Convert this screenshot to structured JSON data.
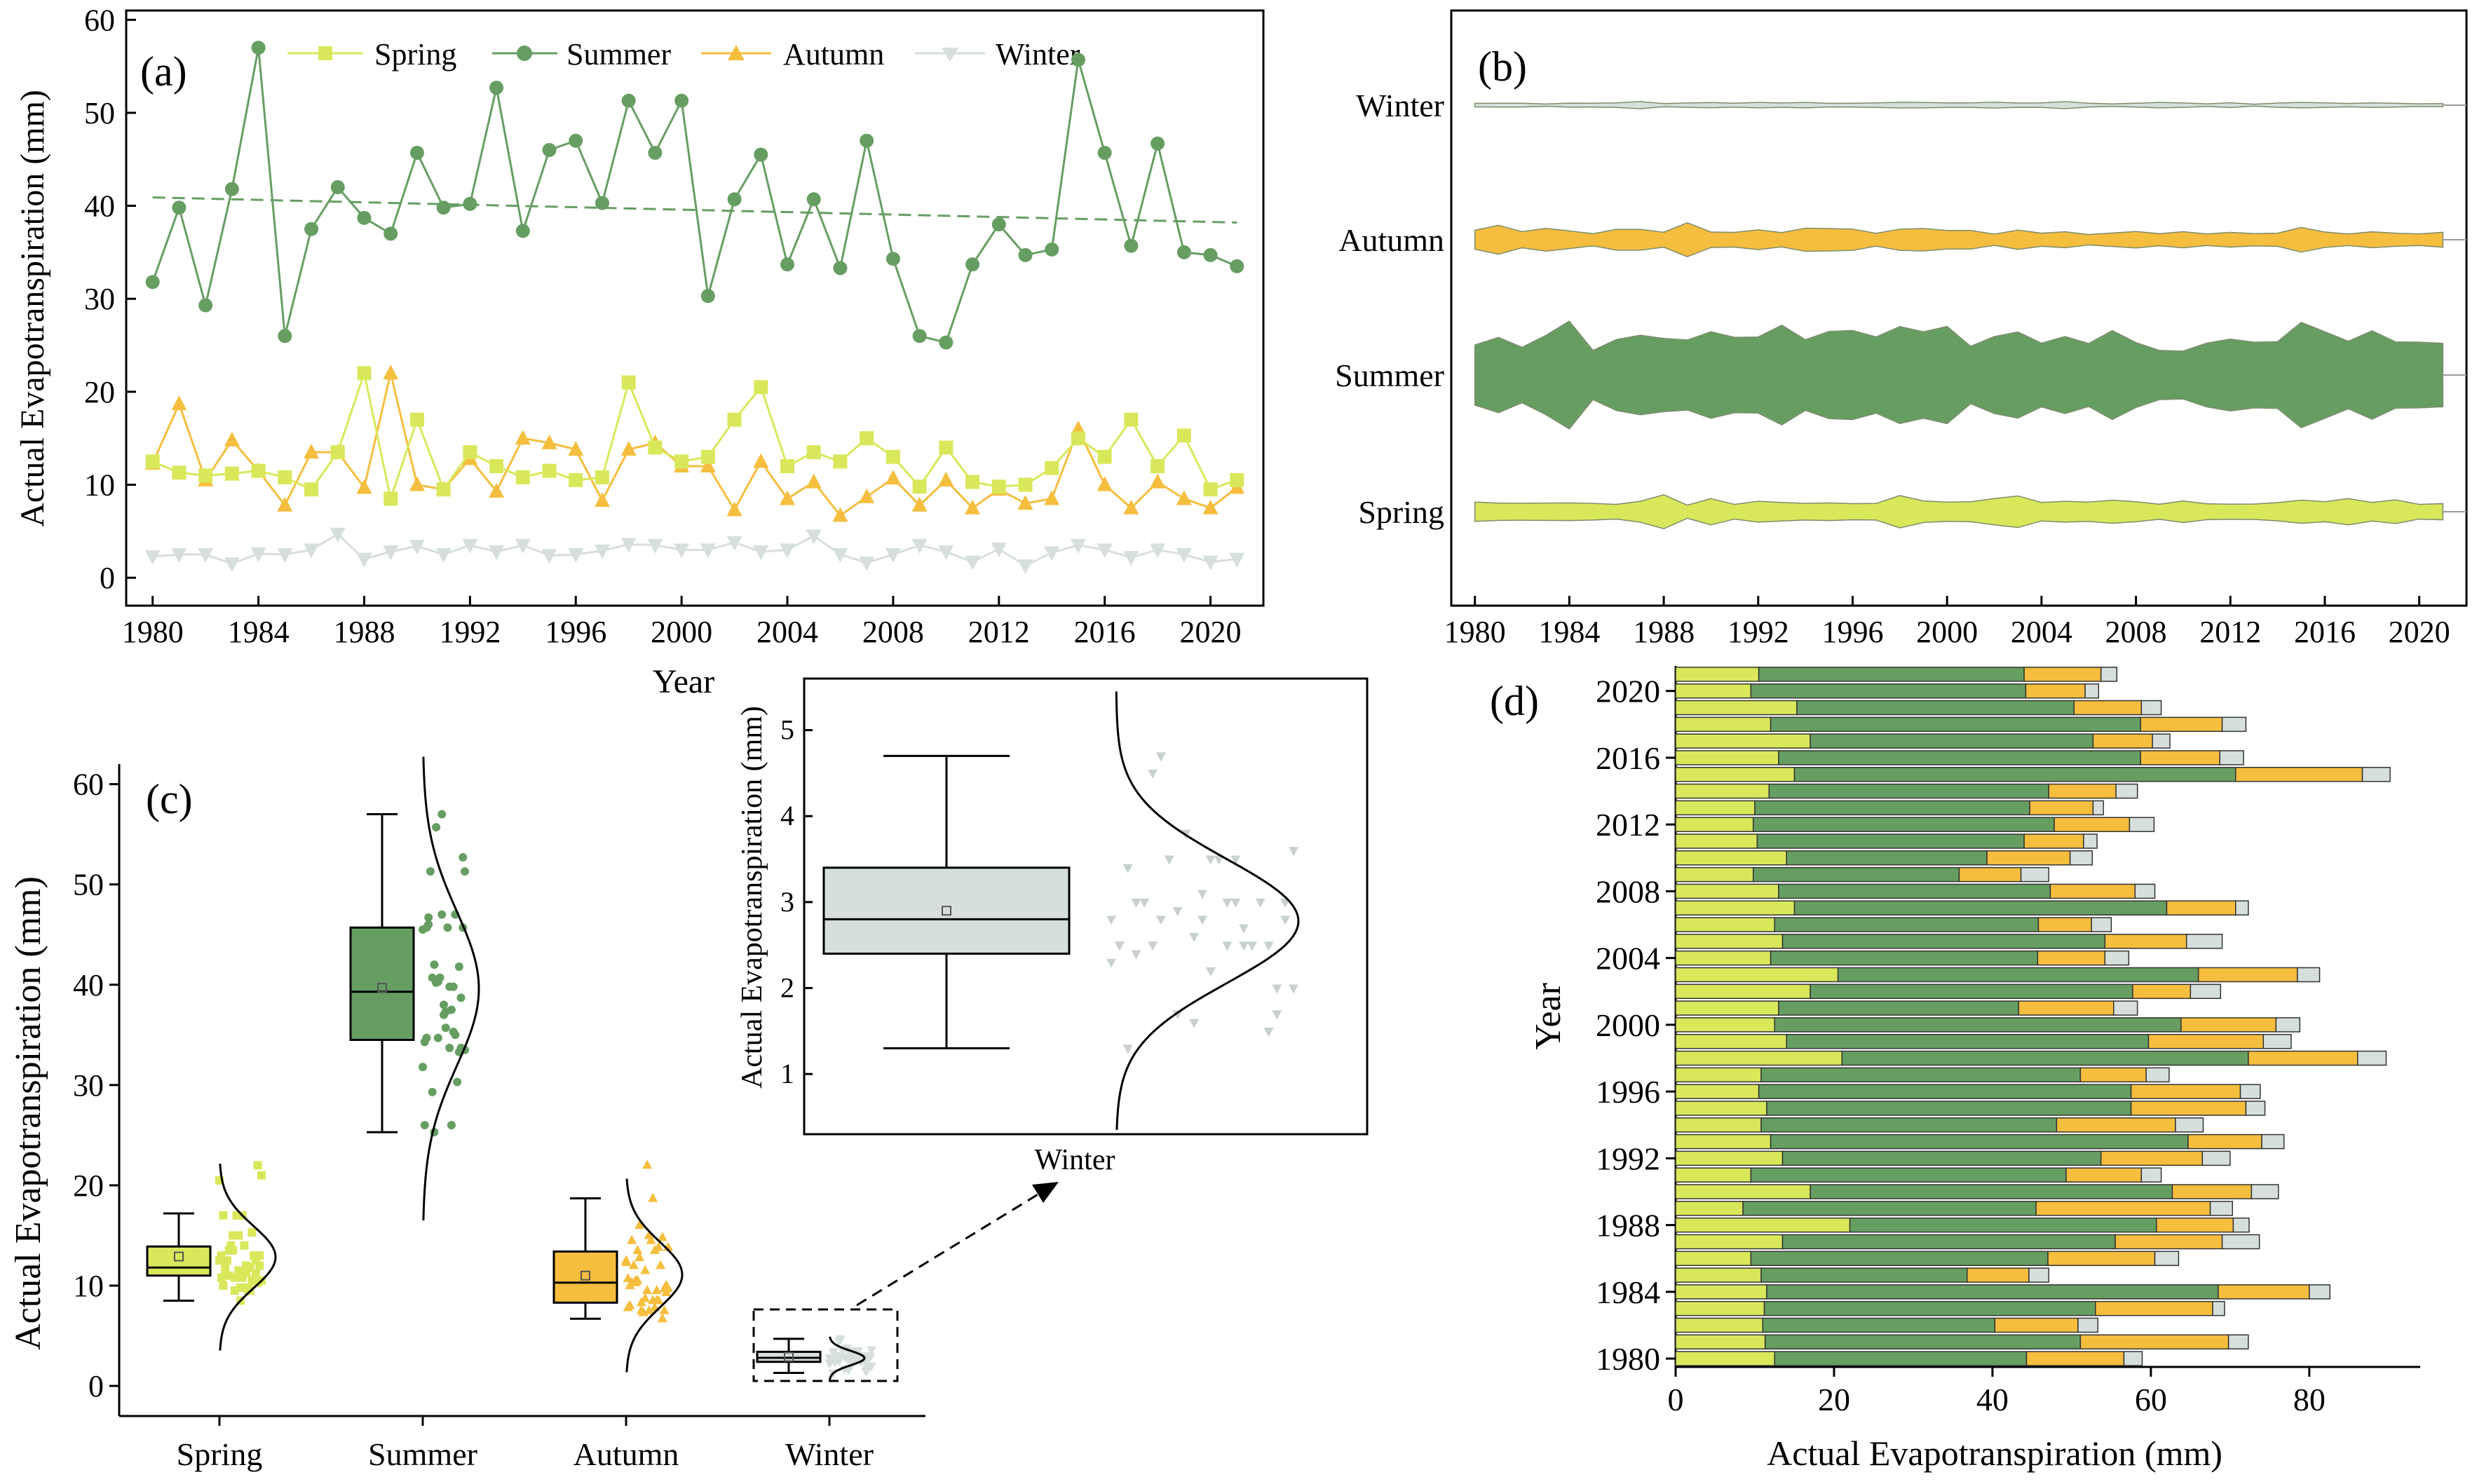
{
  "colors": {
    "spring": "#d9e85a",
    "summer": "#669e62",
    "autumn": "#f6be3e",
    "winter": "#d7dfdc"
  },
  "chart_data": [
    {
      "panel": "(a)",
      "type": "line",
      "title": "",
      "xlabel": "Year",
      "ylabel": "Actual Evapotranspiration (mm)",
      "xlim": [
        1979,
        2022
      ],
      "ylim": [
        -3,
        61
      ],
      "xticks": [
        1980,
        1984,
        1988,
        1992,
        1996,
        2000,
        2004,
        2008,
        2012,
        2016,
        2020
      ],
      "yticks": [
        0,
        10,
        20,
        30,
        40,
        50,
        60
      ],
      "legend": [
        "Spring",
        "Summer",
        "Autumn",
        "Winter"
      ],
      "x": [
        1980,
        1981,
        1982,
        1983,
        1984,
        1985,
        1986,
        1987,
        1988,
        1989,
        1990,
        1991,
        1992,
        1993,
        1994,
        1995,
        1996,
        1997,
        1998,
        1999,
        2000,
        2001,
        2002,
        2003,
        2004,
        2005,
        2006,
        2007,
        2008,
        2009,
        2010,
        2011,
        2012,
        2013,
        2014,
        2015,
        2016,
        2017,
        2018,
        2019,
        2020,
        2021
      ],
      "series": [
        {
          "name": "Spring",
          "values": [
            12.5,
            11.3,
            11.0,
            11.2,
            11.5,
            10.8,
            9.5,
            13.5,
            22.0,
            8.5,
            17.0,
            9.5,
            13.5,
            12.0,
            10.8,
            11.5,
            10.5,
            10.8,
            21.0,
            14.0,
            12.5,
            13.0,
            17.0,
            20.5,
            12.0,
            13.5,
            12.5,
            15.0,
            13.0,
            9.8,
            14.0,
            10.3,
            9.8,
            10.0,
            11.8,
            15.0,
            13.0,
            17.0,
            12.0,
            15.3,
            9.5,
            10.5
          ]
        },
        {
          "name": "Summer",
          "values": [
            31.8,
            39.8,
            29.3,
            41.8,
            57.0,
            26.0,
            37.5,
            42.0,
            38.7,
            37.0,
            45.7,
            39.8,
            40.2,
            52.7,
            37.3,
            46.0,
            47.0,
            40.3,
            51.3,
            45.7,
            51.3,
            30.3,
            40.7,
            45.5,
            33.7,
            40.7,
            33.3,
            47.0,
            34.3,
            26.0,
            25.3,
            33.7,
            38.0,
            34.7,
            35.3,
            55.7,
            45.7,
            35.7,
            46.7,
            35.0,
            34.7,
            33.5
          ]
        },
        {
          "name": "Autumn",
          "values": [
            12.3,
            18.7,
            10.5,
            14.8,
            11.5,
            7.8,
            13.5,
            13.5,
            9.7,
            22.0,
            10.0,
            9.5,
            12.8,
            9.3,
            15.0,
            14.5,
            13.8,
            8.3,
            13.8,
            14.5,
            12.0,
            12.0,
            7.3,
            12.5,
            8.5,
            10.3,
            6.7,
            8.7,
            10.7,
            7.8,
            10.5,
            7.5,
            9.5,
            8.0,
            8.5,
            16.0,
            10.0,
            7.5,
            10.3,
            8.5,
            7.5,
            9.7
          ]
        },
        {
          "name": "Winter",
          "values": [
            2.3,
            2.5,
            2.5,
            1.5,
            2.6,
            2.5,
            3.0,
            4.7,
            2.0,
            2.8,
            3.4,
            2.5,
            3.5,
            2.8,
            3.5,
            2.4,
            2.5,
            2.9,
            3.6,
            3.5,
            3.0,
            3.0,
            3.8,
            2.8,
            3.0,
            4.5,
            2.5,
            1.6,
            2.5,
            3.5,
            2.8,
            1.7,
            3.1,
            1.3,
            2.7,
            3.5,
            3.0,
            2.2,
            3.0,
            2.5,
            1.7,
            2.0
          ]
        }
      ],
      "trendline": {
        "series": "Summer",
        "start": 40.9,
        "end": 38.2
      }
    },
    {
      "panel": "(b)",
      "type": "area",
      "title": "",
      "xlabel": "",
      "ylabel": "",
      "xlim": [
        1979,
        2022
      ],
      "xticks": [
        1980,
        1984,
        1988,
        1992,
        1996,
        2000,
        2004,
        2008,
        2012,
        2016,
        2020
      ],
      "categories": [
        "Winter",
        "Autumn",
        "Summer",
        "Spring"
      ],
      "note": "Streamgraph bands centered on each season row; band thickness proportional to seasonal values of panel (a)"
    },
    {
      "panel": "(c)",
      "type": "box",
      "title": "",
      "xlabel": "",
      "ylabel": "Actual Evapotranspiration (mm)",
      "ylim": [
        -3,
        62
      ],
      "yticks": [
        0,
        10,
        20,
        30,
        40,
        50,
        60
      ],
      "categories": [
        "Spring",
        "Summer",
        "Autumn",
        "Winter"
      ],
      "boxes": [
        {
          "name": "Spring",
          "min": 8.5,
          "q1": 11.0,
          "median": 11.8,
          "q3": 13.9,
          "max": 17.2,
          "mean": 12.9
        },
        {
          "name": "Summer",
          "min": 25.3,
          "q1": 34.5,
          "median": 39.3,
          "q3": 45.7,
          "max": 57.0,
          "mean": 39.7
        },
        {
          "name": "Autumn",
          "min": 6.7,
          "q1": 8.3,
          "median": 10.3,
          "q3": 13.4,
          "max": 18.7,
          "mean": 11.0
        },
        {
          "name": "Winter",
          "min": 1.3,
          "q1": 2.4,
          "median": 2.8,
          "q3": 3.4,
          "max": 4.7,
          "mean": 2.9
        }
      ],
      "inset": {
        "xlabel": "Winter",
        "ylabel": "Actual Evapotranspiration (mm)",
        "ylim": [
          0.3,
          5.6
        ],
        "yticks": [
          1,
          2,
          3,
          4,
          5
        ]
      }
    },
    {
      "panel": "(d)",
      "type": "bar",
      "orientation": "horizontal",
      "stacked": true,
      "title": "",
      "xlabel": "Actual Evapotranspiration (mm)",
      "ylabel": "Year",
      "xlim": [
        0,
        94
      ],
      "xticks": [
        0,
        20,
        40,
        60,
        80
      ],
      "yticks": [
        1980,
        1984,
        1988,
        1992,
        1996,
        2000,
        2004,
        2008,
        2012,
        2016,
        2020
      ],
      "series_order": [
        "Spring",
        "Summer",
        "Autumn",
        "Winter"
      ]
    }
  ],
  "labels": {
    "panel_a": "(a)",
    "panel_b": "(b)",
    "panel_c": "(c)",
    "panel_d": "(d)",
    "year_axis": "Year",
    "et_axis": "Actual Evapotranspiration (mm)",
    "inset_winter": "Winter",
    "legend_spring": "Spring",
    "legend_summer": "Summer",
    "legend_autumn": "Autumn",
    "legend_winter": "Winter"
  }
}
